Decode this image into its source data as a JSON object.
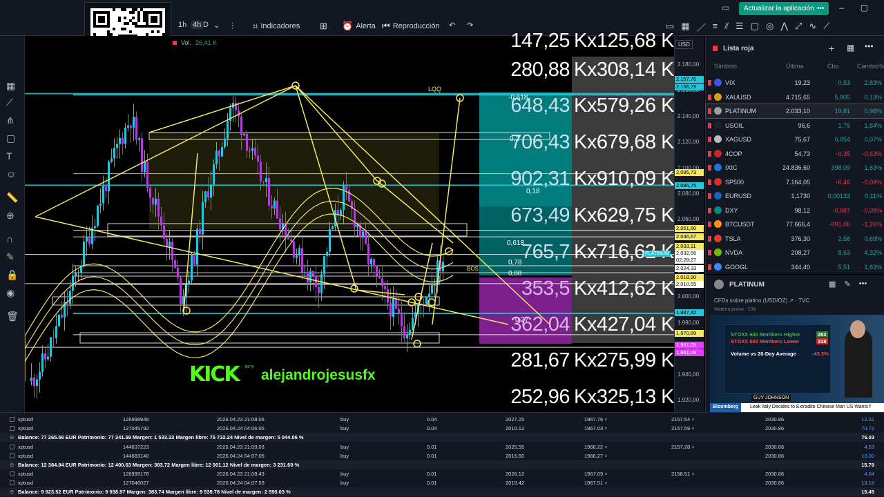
{
  "toolbar": {
    "tf_1h": "1h",
    "tf_4h": "4h",
    "tf_d": "D",
    "indicators": "Indicadores",
    "alert": "Alerta",
    "replay": "Reproducción",
    "upgrade": "Actualizar la aplicación",
    "accent": "#089981"
  },
  "legend": {
    "vol_label": "Vol.",
    "vol_value": "26,41 K"
  },
  "overlay": {
    "rows": [
      {
        "left": "147,25",
        "right": "Kx125,68 K",
        "tone": "none"
      },
      {
        "left": "280,88",
        "right": "Kx308,14 K",
        "tone": "gray"
      },
      {
        "left": "648,43",
        "right": "Kx579,26 K",
        "tone": "teal"
      },
      {
        "left": "706,43",
        "right": "Kx679,68 K",
        "tone": "teal"
      },
      {
        "left": "902,31",
        "right": "Kx910,09 K",
        "tone": "teal"
      },
      {
        "left": "673,49",
        "right": "Kx629,75 K",
        "tone": "teal"
      },
      {
        "left": "765,7",
        "right": "Kx716,62 K",
        "tone": "teal"
      },
      {
        "left": "353,5",
        "right": "Kx412,62 K",
        "tone": "purple"
      },
      {
        "left": "362,04",
        "right": "Kx427,04 K",
        "tone": "purple"
      },
      {
        "left": "281,67",
        "right": "Kx275,99 K",
        "tone": "none"
      },
      {
        "left": "252,96",
        "right": "Kx325,13 K",
        "tone": "none"
      }
    ],
    "fib_labels": [
      "-0,618",
      "0,2",
      "0,18",
      "0,618",
      "0,78",
      "0,88",
      "0,27"
    ],
    "lqq": "LQQ",
    "bos": "BOS",
    "kick_logo": "KICK",
    "kick_beta": "BETA",
    "streamer": "alejandrojesusfx"
  },
  "price_axis": {
    "currency": "USD",
    "labels": [
      "2.180,00",
      "2.160,00",
      "2.140,00",
      "2.120,00",
      "2.100,00",
      "2.080,00",
      "2.060,00",
      "2.040,00",
      "2.020,00",
      "2.000,00",
      "1.980,00",
      "1.960,00",
      "1.940,00",
      "1.920,00"
    ],
    "tags": [
      {
        "v": "2.157,70",
        "c": "#26c6da"
      },
      {
        "v": "2.156,79",
        "c": "#26c6da"
      },
      {
        "v": "2.095,73",
        "c": "#f5e663"
      },
      {
        "v": "2.086,75",
        "c": "#26c6da"
      },
      {
        "v": "2.051,80",
        "c": "#f5e663"
      },
      {
        "v": "2.046,67",
        "c": "#f5e663"
      },
      {
        "v": "2.033,11",
        "c": "#f5e663"
      },
      {
        "v": "2.032,56",
        "c": "#ffffff"
      },
      {
        "v": "02:28:27",
        "c": "#ffffff"
      },
      {
        "v": "2.024,33",
        "c": "#ffffff"
      },
      {
        "v": "2.018,90",
        "c": "#f5e663"
      },
      {
        "v": "2.010,55",
        "c": "#ffffff"
      },
      {
        "v": "1.987,42",
        "c": "#26c6da"
      },
      {
        "v": "1.970,89",
        "c": "#f5e663"
      },
      {
        "v": "1.961,09",
        "c": "#e040fb"
      },
      {
        "v": "1.961,09",
        "c": "#e040fb"
      }
    ],
    "platinum_tag": "PLATINUM"
  },
  "watchlist": {
    "title": "Lista roja",
    "headers": {
      "symbol": "Símbolo",
      "last": "Última",
      "chg": "Cbo",
      "pct": "Cambio%"
    },
    "rows": [
      {
        "sym": "VIX",
        "last": "19,23",
        "chg": "0,53",
        "pct": "2,83%",
        "dir": "up",
        "ic": "#3b5bdb"
      },
      {
        "sym": "XAUUSD",
        "last": "4.715,65",
        "chg": "5,905",
        "pct": "0,13%",
        "dir": "up",
        "ic": "#d4a017"
      },
      {
        "sym": "PLATINUM",
        "last": "2.033,10",
        "chg": "19,81",
        "pct": "0,98%",
        "dir": "up",
        "ic": "#9e9e9e"
      },
      {
        "sym": "USOIL",
        "last": "96,6",
        "chg": "1,75",
        "pct": "1,84%",
        "dir": "up",
        "ic": "#222222"
      },
      {
        "sym": "XAGUSD",
        "last": "75,67",
        "chg": "0,054",
        "pct": "0,07%",
        "dir": "up",
        "ic": "#bdbdbd"
      },
      {
        "sym": "4COP",
        "last": "54,73",
        "chg": "-0,35",
        "pct": "-0,63%",
        "dir": "dn",
        "ic": "#c62828"
      },
      {
        "sym": "IXIC",
        "last": "24.836,60",
        "chg": "398,09",
        "pct": "1,63%",
        "dir": "up",
        "ic": "#1976d2"
      },
      {
        "sym": "SP500",
        "last": "7.164,05",
        "chg": "-6,46",
        "pct": "-0,09%",
        "dir": "dn",
        "ic": "#d32f2f"
      },
      {
        "sym": "EURUSD",
        "last": "1,1730",
        "chg": "0,00133",
        "pct": "0,11%",
        "dir": "up",
        "ic": "#1565c0"
      },
      {
        "sym": "DXY",
        "last": "98,12",
        "chg": "-0,087",
        "pct": "-0,09%",
        "dir": "dn",
        "ic": "#00897b"
      },
      {
        "sym": "BTCUSDT",
        "last": "77.666,4",
        "chg": "-991,06",
        "pct": "-1,26%",
        "dir": "dn",
        "ic": "#f7931a"
      },
      {
        "sym": "TSLA",
        "last": "376,30",
        "chg": "2,58",
        "pct": "0,69%",
        "dir": "up",
        "ic": "#e53935"
      },
      {
        "sym": "NVDA",
        "last": "208,27",
        "chg": "8,63",
        "pct": "4,32%",
        "dir": "up",
        "ic": "#76b900"
      },
      {
        "sym": "GOOGL",
        "last": "344,40",
        "chg": "5,51",
        "pct": "1,63%",
        "dir": "up",
        "ic": "#4285f4"
      }
    ]
  },
  "details": {
    "name": "PLATINUM",
    "subtitle": "CFDs sobre platino (USD/OZ)",
    "source": "TVC",
    "type": "Materia prima · Cfd"
  },
  "video": {
    "row1": "STOXX 600 Members Higher",
    "row1_val": "262",
    "row2": "STOXX 600 Members Lower",
    "row2_val": "318",
    "row3": "Volume vs 20-Day Average",
    "row3_val": "-43.3%",
    "name": "GUY JOHNSON",
    "brand": "Bloomberg",
    "ticker": "Leak    Italy Decides to Extradite Chinese Man US Wants f"
  },
  "positions": {
    "groups": [
      {
        "rows": [
          {
            "sym": "xptusd",
            "id": "126998948",
            "time": "2026.04.23 21:08:06",
            "type": "buy",
            "vol": "0.04",
            "open": "2027.25",
            "sl": "1967.76",
            "tp": "2157.54",
            "cur": "2030.86",
            "profit": "12.31"
          },
          {
            "sym": "xptusd",
            "id": "127045792",
            "time": "2026.04.24 04:06:05",
            "type": "buy",
            "vol": "0.04",
            "open": "2010.12",
            "sl": "1967.03",
            "tp": "2157.59",
            "cur": "2030.86",
            "profit": "70.72"
          }
        ],
        "balance": "Balance: 77 265.56 EUR  Patrimonio: 77 341.59  Margen: 1 533.32  Margen libre: 75 732.24  Nivel de margen: 5 044.06 %",
        "total": "76.03"
      },
      {
        "rows": [
          {
            "sym": "xptusd",
            "id": "144637223",
            "time": "2026.04.23 21:09:03",
            "type": "buy",
            "vol": "0.01",
            "open": "2025.55",
            "sl": "1966.22",
            "tp": "2157.28",
            "cur": "2030.86",
            "profit": "4.53"
          },
          {
            "sym": "xptusd",
            "id": "144683140",
            "time": "2026.04.24 04:07:05",
            "type": "buy",
            "vol": "0.01",
            "open": "2015.60",
            "sl": "1966.27",
            "tp": "",
            "cur": "2030.86",
            "profit": "13.00"
          }
        ],
        "balance": "Balance: 12 384.84 EUR  Patrimonio: 12 400.63  Margen: 383.72  Margen libre: 12 001.12  Nivel de margen: 3 231.69 %",
        "total": "15.79"
      },
      {
        "rows": [
          {
            "sym": "xptusd",
            "id": "126999178",
            "time": "2026.04.23 21:08:43",
            "type": "buy",
            "vol": "0.01",
            "open": "2026.12",
            "sl": "1967.09",
            "tp": "2158.51",
            "cur": "2030.86",
            "profit": "4.04"
          },
          {
            "sym": "xptusd",
            "id": "127046027",
            "time": "2026.04.24 04:07:59",
            "type": "buy",
            "vol": "0.01",
            "open": "2015.42",
            "sl": "1967.51",
            "tp": "",
            "cur": "2030.86",
            "profit": "13.18"
          }
        ],
        "balance": "Balance: 9 923.52 EUR  Patrimonio: 9 938.97  Margen: 383.74  Margen libre: 9 539.78  Nivel de margen: 2 590.03 %",
        "total": "15.45"
      }
    ]
  }
}
